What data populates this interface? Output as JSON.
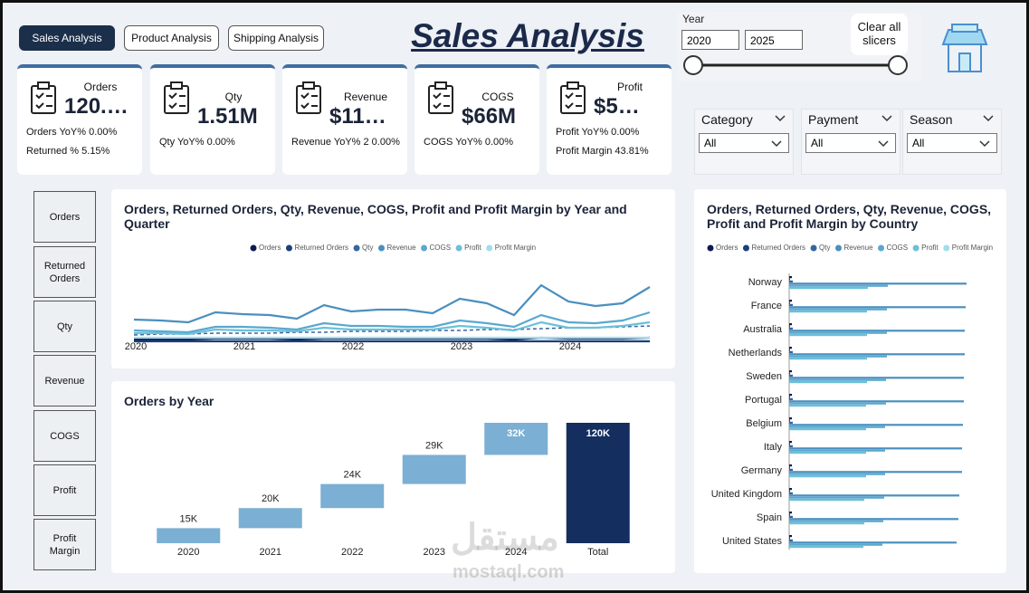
{
  "nav": {
    "buttons": [
      "Sales Analysis",
      "Product Analysis",
      "Shipping Analysis"
    ],
    "active": 0
  },
  "header": {
    "title": "Sales Analysis"
  },
  "year_slicer": {
    "label": "Year",
    "from": "2020",
    "to": "2025"
  },
  "clear_button": "Clear all slicers",
  "kpis": [
    {
      "label": "Orders",
      "value": "120.…",
      "lines": [
        "Orders YoY% 0.00%",
        "Returned % 5.15%"
      ]
    },
    {
      "label": "Qty",
      "value": "1.51M",
      "lines": [
        "Qty YoY% 0.00%"
      ]
    },
    {
      "label": "Revenue",
      "value": "$11…",
      "lines": [
        "Revenue YoY% 2 0.00%"
      ]
    },
    {
      "label": "COGS",
      "value": "$66M",
      "lines": [
        "COGS YoY% 0.00%"
      ]
    },
    {
      "label": "Profit",
      "value": "$5…",
      "lines": [
        "Profit YoY% 0.00%",
        "Profit Margin 43.81%"
      ]
    }
  ],
  "filters": [
    {
      "label": "Category",
      "value": "All"
    },
    {
      "label": "Payment",
      "value": "All"
    },
    {
      "label": "Season",
      "value": "All"
    }
  ],
  "measure_buttons": [
    "Orders",
    "Returned Orders",
    "Qty",
    "Revenue",
    "COGS",
    "Profit",
    "Profit Margin"
  ],
  "watermark": {
    "logo": "مستقل",
    "url": "mostaql.com"
  },
  "chart_data": [
    {
      "type": "line",
      "title": "Orders, Returned Orders, Qty, Revenue, COGS, Profit and Profit Margin by Year and Quarter",
      "categories": [
        "2020",
        null,
        null,
        null,
        "2021",
        null,
        null,
        null,
        "2022",
        null,
        null,
        null,
        "2023",
        null,
        null,
        null,
        "2024",
        null,
        null,
        null
      ],
      "ylim": [
        0,
        80
      ],
      "series": [
        {
          "name": "Orders",
          "color": "#0d1b52",
          "values": [
            3,
            3,
            3,
            4,
            4,
            4,
            3,
            4,
            4,
            4,
            4,
            4,
            4,
            4,
            3,
            5,
            4,
            4,
            4,
            5
          ]
        },
        {
          "name": "Returned Orders",
          "color": "#1a3f7a",
          "values": [
            1,
            1,
            1,
            1,
            1,
            1,
            1,
            1,
            1,
            1,
            1,
            1,
            1,
            1,
            1,
            1,
            1,
            1,
            1,
            1
          ]
        },
        {
          "name": "Qty",
          "color": "#3466a0",
          "line_style": "dashed",
          "values": [
            8,
            9,
            9,
            10,
            10,
            10,
            11,
            11,
            12,
            12,
            12,
            13,
            13,
            14,
            14,
            15,
            16,
            16,
            17,
            18
          ]
        },
        {
          "name": "Revenue",
          "color": "#4a8fbf",
          "values": [
            25,
            24,
            22,
            33,
            31,
            30,
            26,
            41,
            34,
            36,
            36,
            32,
            48,
            43,
            30,
            63,
            45,
            40,
            43,
            61
          ]
        },
        {
          "name": "COGS",
          "color": "#5aa8cf",
          "values": [
            13,
            12,
            11,
            17,
            17,
            16,
            14,
            21,
            18,
            18,
            17,
            17,
            24,
            21,
            17,
            30,
            22,
            21,
            24,
            33
          ]
        },
        {
          "name": "Profit",
          "color": "#6cc0d9",
          "values": [
            10,
            10,
            9,
            14,
            13,
            13,
            12,
            16,
            14,
            14,
            14,
            14,
            18,
            16,
            13,
            22,
            16,
            16,
            18,
            22
          ]
        },
        {
          "name": "Profit Margin",
          "color": "#a3dcea",
          "values": [
            5,
            5,
            5,
            5,
            5,
            5,
            5,
            5,
            5,
            5,
            5,
            5,
            5,
            5,
            5,
            5,
            5,
            5,
            5,
            5
          ]
        }
      ]
    },
    {
      "type": "waterfall",
      "title": "Orders by Year",
      "categories": [
        "2020",
        "2021",
        "2022",
        "2023",
        "2024",
        "Total"
      ],
      "values": [
        15,
        20,
        24,
        29,
        32,
        120
      ],
      "value_labels": [
        "15K",
        "20K",
        "24K",
        "29K",
        "32K",
        "120K"
      ],
      "is_total": [
        false,
        false,
        false,
        false,
        false,
        true
      ],
      "colors": {
        "increase": "#7bafd4",
        "total": "#142e5f"
      },
      "ylim": [
        0,
        120
      ]
    },
    {
      "type": "hbar",
      "title": "Orders, Returned Orders, Qty, Revenue, COGS, Profit and Profit Margin by Country",
      "categories": [
        "Norway",
        "France",
        "Australia",
        "Netherlands",
        "Sweden",
        "Portugal",
        "Belgium",
        "Italy",
        "Germany",
        "United Kingdom",
        "Spain",
        "United States"
      ],
      "xlim": [
        0,
        200
      ],
      "series": [
        {
          "name": "Orders",
          "color": "#0d1b52",
          "values": [
            3,
            3,
            3,
            3,
            3,
            3,
            3,
            3,
            3,
            3,
            3,
            3
          ]
        },
        {
          "name": "Returned Orders",
          "color": "#1a3f7a",
          "values": [
            1,
            1,
            1,
            1,
            1,
            1,
            1,
            1,
            1,
            1,
            1,
            1
          ]
        },
        {
          "name": "Qty",
          "color": "#3466a0",
          "values": [
            4,
            4,
            4,
            4,
            4,
            4,
            4,
            4,
            4,
            4,
            4,
            4
          ]
        },
        {
          "name": "Revenue",
          "color": "#4a8fbf",
          "values": [
            196,
            195,
            194,
            194,
            193,
            193,
            192,
            191,
            191,
            188,
            187,
            185
          ]
        },
        {
          "name": "COGS",
          "color": "#5aa8cf",
          "values": [
            109,
            108,
            108,
            108,
            107,
            107,
            106,
            106,
            106,
            105,
            104,
            103
          ]
        },
        {
          "name": "Profit",
          "color": "#6cc0d9",
          "values": [
            87,
            86,
            86,
            86,
            86,
            85,
            85,
            85,
            85,
            83,
            83,
            82
          ]
        },
        {
          "name": "Profit Margin",
          "color": "#a3dcea",
          "values": [
            1,
            1,
            1,
            1,
            1,
            1,
            1,
            1,
            1,
            1,
            1,
            1
          ]
        }
      ]
    }
  ]
}
